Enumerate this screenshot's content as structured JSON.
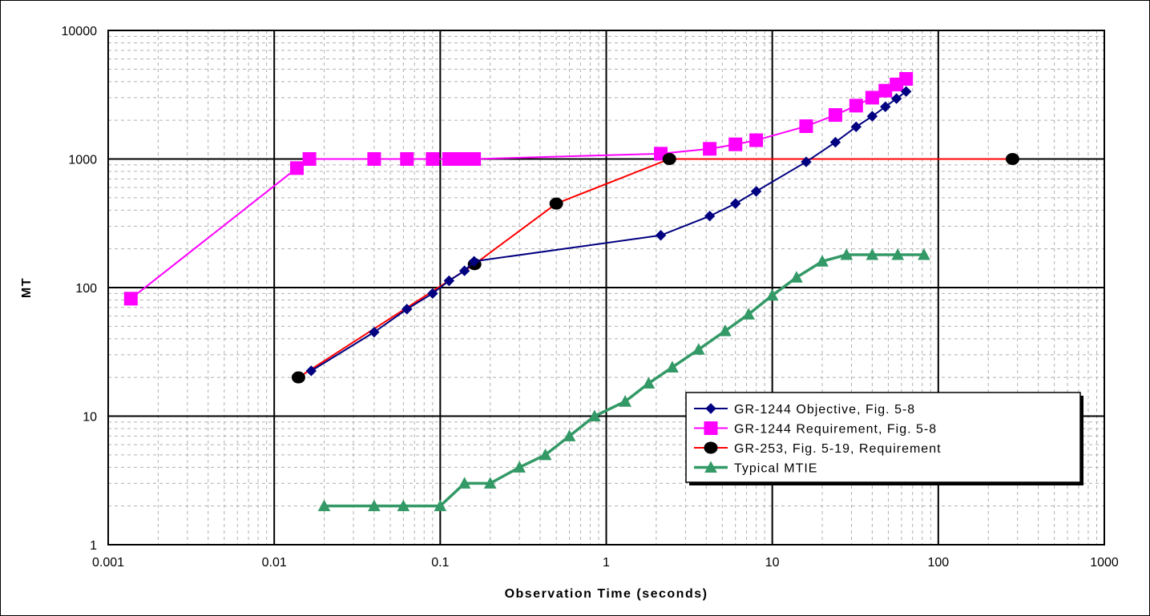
{
  "chart_data": {
    "type": "line",
    "title": "",
    "xlabel": "Observation Time (seconds)",
    "ylabel": "MT",
    "x_scale": "log",
    "y_scale": "log",
    "xlim": [
      0.001,
      1000
    ],
    "ylim": [
      1,
      10000
    ],
    "x_tick_labels": [
      "0.001",
      "0.01",
      "0.1",
      "1",
      "10",
      "100",
      "1000"
    ],
    "y_tick_labels": [
      "1",
      "10",
      "100",
      "1000",
      "10000"
    ],
    "grid": true,
    "legend_position": "lower-right",
    "series": [
      {
        "name": "GR-1244 Objective, Fig. 5-8",
        "color": "#000080",
        "marker": "diamond",
        "x": [
          0.0167,
          0.04,
          0.063,
          0.09,
          0.113,
          0.14,
          0.16,
          2.13,
          4.2,
          6.0,
          8.0,
          16.0,
          24.0,
          32.0,
          40.0,
          48.0,
          56.0,
          64.0
        ],
        "y": [
          22.5,
          45,
          68,
          90,
          113,
          135,
          160,
          255,
          360,
          450,
          560,
          950,
          1350,
          1780,
          2150,
          2550,
          2950,
          3350
        ]
      },
      {
        "name": "GR-1244 Requirement, Fig. 5-8",
        "color": "#ff00ff",
        "marker": "square",
        "x": [
          0.00137,
          0.0137,
          0.0163,
          0.04,
          0.063,
          0.09,
          0.113,
          0.125,
          0.14,
          0.16,
          2.13,
          4.2,
          6.0,
          8.0,
          16.0,
          24.0,
          32.0,
          40.0,
          48.0,
          56.0,
          64.0
        ],
        "y": [
          82,
          850,
          1000,
          1000,
          1000,
          1000,
          1000,
          1000,
          1000,
          1000,
          1100,
          1200,
          1300,
          1400,
          1800,
          2200,
          2600,
          3000,
          3400,
          3800,
          4200
        ]
      },
      {
        "name": "GR-253, Fig. 5-19, Requirement",
        "color": "#ff0000",
        "marker": "circle",
        "x": [
          0.014,
          0.161,
          0.5,
          2.4,
          280
        ],
        "y": [
          20,
          152,
          450,
          1000,
          1000
        ]
      },
      {
        "name": "Typical MTIE",
        "color": "#339966",
        "marker": "triangle",
        "x": [
          0.02,
          0.04,
          0.06,
          0.1,
          0.14,
          0.2,
          0.3,
          0.43,
          0.6,
          0.85,
          1.3,
          1.8,
          2.5,
          3.6,
          5.2,
          7.2,
          10.0,
          14.0,
          20.0,
          28.0,
          40.0,
          57.0,
          82.0
        ],
        "y": [
          2,
          2,
          2,
          2,
          3,
          3,
          4,
          5,
          7,
          10,
          13,
          18,
          24,
          33,
          46,
          62,
          87,
          120,
          160,
          180,
          180,
          180,
          180
        ]
      }
    ]
  }
}
